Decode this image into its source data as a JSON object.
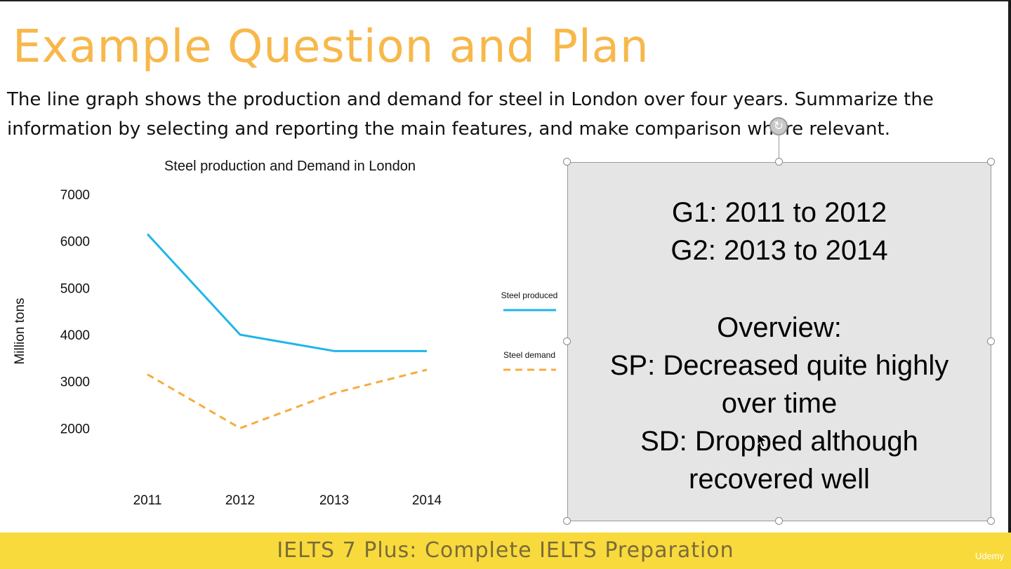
{
  "slide": {
    "title": "Example Question and Plan",
    "question": "The line graph shows the production and demand for steel in London over four years. Summarize the information by selecting and reporting the main features, and make comparison where relevant."
  },
  "chart_data": {
    "type": "line",
    "title": "Steel production and Demand in London",
    "ylabel": "Million tons",
    "xlabel": "",
    "x": [
      "2011",
      "2012",
      "2013",
      "2014"
    ],
    "ylim": [
      1000,
      7000
    ],
    "yticks": [
      2000,
      3000,
      4000,
      5000,
      6000,
      7000
    ],
    "grid": false,
    "legend_position": "right",
    "series": [
      {
        "name": "Steel produced",
        "values": [
          6150,
          4000,
          3650,
          3650
        ],
        "color": "#1fb5ea",
        "style": "solid"
      },
      {
        "name": "Steel demand",
        "values": [
          3150,
          2000,
          2750,
          3250
        ],
        "color": "#f5ad3d",
        "style": "dashed"
      }
    ]
  },
  "plan": {
    "lines": [
      "G1: 2011 to 2012",
      "G2: 2013 to 2014",
      "Overview:",
      "SP: Decreased quite highly",
      "over time",
      "SD: Dropped although",
      "recovered well"
    ]
  },
  "footer": {
    "course_title": "IELTS 7 Plus: Complete IELTS Preparation",
    "brand": "Udemy"
  },
  "icons": {
    "rotate": "rotate-handle-icon",
    "cursor": "arrow-cursor-icon"
  }
}
